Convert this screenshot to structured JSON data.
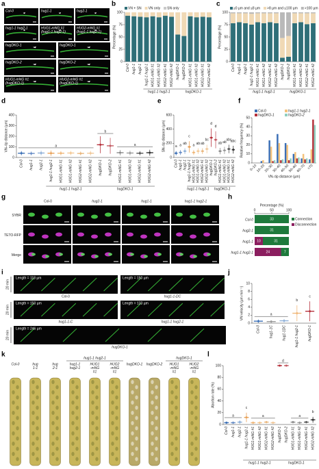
{
  "panel_labels": [
    "a",
    "b",
    "c",
    "d",
    "e",
    "f",
    "g",
    "h",
    "i",
    "j",
    "k",
    "l"
  ],
  "panel_a": {
    "tiles": [
      [
        "Col-0"
      ],
      [
        "hug1-1"
      ],
      [
        "hug2-1"
      ],
      [
        "hug1-1 hug2-1"
      ],
      [
        "HUG1-mNG #1",
        "(hug1-1 hug2-1)"
      ],
      [
        "HUG2-mNG #1",
        "(hug1-1 hug2-1)"
      ],
      [
        "hugDKO-1"
      ],
      [
        "hugDKO-1"
      ],
      [
        "hugDKO-2"
      ],
      [
        "hugDKO-2"
      ],
      [
        "HUG1-mNG #1",
        "(hugDKO-1)"
      ],
      [
        "HUG2-mNG #1",
        "(hugDKO-1)"
      ]
    ]
  },
  "panel_g": {
    "columns": [
      "Col-0",
      "hug2-1",
      "hug1-1",
      "hug1-1 hug2-1"
    ],
    "rows": [
      "SYBR",
      "TETO-RFP",
      "Merge"
    ]
  },
  "panel_i": {
    "time": "20 min",
    "tiles": [
      {
        "length": "Length = 118 µm",
        "caption": "Col-0"
      },
      {
        "length": "Length = 150 µm",
        "caption": "hug1-1-DC"
      },
      {
        "length": "Length = 150 µm",
        "caption": "hug1-1-C"
      },
      {
        "length": "Length = 133 µm",
        "caption": "hug1-1 hug2-1"
      },
      {
        "length": "Length = 246 µm",
        "caption": "hugDKO-1"
      }
    ]
  },
  "panel_k": {
    "groups": [
      "hug1-1 hug2-1",
      "hugDKO-1"
    ],
    "columns": [
      [
        "Col-0"
      ],
      [
        "hug",
        "1-1"
      ],
      [
        "hug",
        "2-1"
      ],
      [
        "hug1-1",
        "hug2-1"
      ],
      [
        "HUG1",
        "-mNG",
        "#1"
      ],
      [
        "HUG2",
        "-mNG",
        "#1"
      ],
      [
        "hugDKO-1"
      ],
      [
        "hugDKO-2"
      ],
      [
        "HUG1",
        "-mNG",
        "#1"
      ],
      [
        "HUG2",
        "-mNG",
        "#1"
      ]
    ]
  },
  "chart_data": [
    {
      "type": "stacked_bar",
      "ylabel": "Percentage (%)",
      "ylim": [
        0,
        100
      ],
      "yticks": [
        0,
        25,
        50,
        75,
        100
      ],
      "categories": [
        "Col-0",
        "hug1-1",
        "hug2-1",
        "hug1-1 hug2-1",
        "HUG1-mNG #1",
        "HUG1-mNG #2",
        "HUG2-mNG #1",
        "HUG2-mNG #2",
        "hugDKO-1",
        "hugDKO-2",
        "HUG1-mNG #1",
        "HUG1-mNG #2",
        "HUG2-mNG #1",
        "HUG2-mNG #2"
      ],
      "groups": [
        "hug1-1 hug2-1",
        "hugDKO-1"
      ],
      "series": [
        {
          "name": "VN + SN",
          "color": "#2f6f78",
          "values": [
            93,
            92,
            91,
            90,
            92,
            90,
            93,
            91,
            55,
            52,
            92,
            90,
            91,
            90
          ]
        },
        {
          "name": "VN only",
          "color": "#f0d9b5",
          "values": [
            7,
            8,
            9,
            10,
            8,
            10,
            7,
            9,
            45,
            48,
            8,
            10,
            9,
            10
          ]
        },
        {
          "name": "SN only",
          "color": "#c9c9c9",
          "values": [
            0,
            0,
            0,
            0,
            0,
            0,
            0,
            0,
            0,
            0,
            0,
            0,
            0,
            0
          ]
        }
      ]
    },
    {
      "type": "stacked_bar",
      "ylabel": "Percentage (%)",
      "ylim": [
        0,
        100
      ],
      "yticks": [
        0,
        25,
        50,
        75,
        100
      ],
      "categories": [
        "Col-0",
        "hug1-1",
        "hug2-1",
        "hug1-1 hug2-1",
        "HUG1-mNG #1",
        "HUG1-mNG #2",
        "HUG2-mNG #1",
        "HUG2-mNG #2",
        "hugDKO-1",
        "hugDKO-2",
        "HUG1-mNG #1",
        "HUG1-mNG #2",
        "HUG2-mNG #1",
        "HUG2-mNG #2"
      ],
      "groups": [
        "hug1-1 hug2-1",
        "hugDKO-1"
      ],
      "series": [
        {
          "name": "≥0 µm and ≤8 µm",
          "color": "#2f6f78",
          "values": [
            78,
            80,
            78,
            75,
            80,
            78,
            80,
            78,
            8,
            10,
            78,
            80,
            76,
            78
          ]
        },
        {
          "name": ">8 µm and ≤100 µm",
          "color": "#f0d9b5",
          "values": [
            20,
            18,
            20,
            22,
            18,
            20,
            18,
            20,
            40,
            42,
            20,
            18,
            22,
            20
          ]
        },
        {
          "name": ">100 µm",
          "color": "#b9b9b9",
          "values": [
            2,
            2,
            2,
            3,
            2,
            2,
            2,
            2,
            52,
            48,
            2,
            2,
            2,
            2
          ]
        }
      ]
    },
    {
      "type": "dot_summary",
      "ylabel": "VN–tip distance (µm)",
      "ylim": [
        0,
        400
      ],
      "yticks": [
        0,
        100,
        200,
        300,
        400
      ],
      "categories": [
        "Col-0",
        "hug1-1",
        "hug2-1",
        "hug1-1 hug2-1",
        "HUG1-mNG #1",
        "HUG1-mNG #2",
        "HUG2-mNG #1",
        "HUG2-mNG #2",
        "hugDKO-1",
        "hugDKO-2",
        "HUG1-mNG #1",
        "HUG1-mNG #2",
        "HUG2-mNG #1",
        "HUG2-mNG #2"
      ],
      "groups": [
        "hug1-1 hug2-1",
        "hugDKO-1"
      ],
      "colors": [
        "#3b6fb6",
        "#6a8fc7",
        "#8fb0d8",
        "#e8a25a",
        "#f0b87a",
        "#f3c894",
        "#e9b77e",
        "#f0c89a",
        "#b5303a",
        "#c25a62",
        "#888888",
        "#9a9a9a",
        "#555555",
        "#333333"
      ],
      "values": [
        40,
        38,
        42,
        40,
        40,
        42,
        38,
        40,
        120,
        110,
        45,
        42,
        40,
        45
      ],
      "errors": [
        20,
        18,
        22,
        25,
        20,
        20,
        18,
        22,
        80,
        75,
        25,
        22,
        20,
        28
      ],
      "annotations": [
        "a",
        "b",
        "a"
      ]
    },
    {
      "type": "dot_summary",
      "ylabel": "SN–tip distance (µm)",
      "ylim": [
        0,
        600
      ],
      "yticks": [
        0,
        200,
        400,
        600
      ],
      "categories": [
        "Col-0",
        "hug1-1",
        "hug2-1",
        "hug1-1 hug2-1",
        "HUG1-mNG #1",
        "HUG1-mNG #2",
        "HUG2-mNG #1",
        "HUG2-mNG #2",
        "hugDKO-1",
        "hugDKO-2",
        "HUG1-mNG #1",
        "HUG1-mNG #2",
        "HUG2-mNG #1",
        "HUG2-mNG #2"
      ],
      "groups": [
        "hug1-1 hug2-1",
        "hugDKO-1"
      ],
      "colors": [
        "#3b6fb6",
        "#6a8fc7",
        "#8fb0d8",
        "#e8a25a",
        "#f0b87a",
        "#f3c894",
        "#e9b77e",
        "#f0c89a",
        "#b5303a",
        "#c25a62",
        "#888888",
        "#9a9a9a",
        "#555555",
        "#333333"
      ],
      "values": [
        60,
        70,
        90,
        150,
        70,
        90,
        90,
        120,
        280,
        250,
        90,
        100,
        120,
        110
      ],
      "errors": [
        30,
        35,
        40,
        80,
        35,
        40,
        40,
        60,
        130,
        120,
        45,
        50,
        60,
        55
      ],
      "annotations": [
        "a",
        "a",
        "ab",
        "c",
        "a",
        "ab",
        "ab",
        "bc",
        "d",
        "d",
        "ab",
        "ab",
        "abc",
        "abc"
      ]
    },
    {
      "type": "grouped_bar",
      "ylabel": "Relative frequency (%)",
      "xlabel": "VN–tip distance (µm)",
      "ylim": [
        0,
        50
      ],
      "yticks": [
        0,
        10,
        20,
        30,
        40,
        50
      ],
      "categories": [
        "0–10",
        "10–20",
        "20–30",
        "30–40",
        "40–50",
        "50–60",
        "60–70",
        ">70"
      ],
      "series": [
        {
          "name": "Col-0",
          "color": "#3b6fb6",
          "values": [
            0,
            2,
            25,
            32,
            22,
            10,
            5,
            4
          ]
        },
        {
          "name": "hug1-1 hug2-1",
          "color": "#f5c27a",
          "values": [
            0,
            3,
            18,
            22,
            20,
            12,
            10,
            15
          ]
        },
        {
          "name": "hugDKO-1",
          "color": "#b5303a",
          "values": [
            0,
            0,
            2,
            3,
            3,
            5,
            4,
            48
          ]
        },
        {
          "name": "hugDKO-2",
          "color": "#8fcfc0",
          "values": [
            0,
            0,
            3,
            4,
            5,
            6,
            5,
            42
          ]
        }
      ]
    },
    {
      "type": "hstack",
      "xlabel": "Percentage (%)",
      "xlim": [
        0,
        100
      ],
      "xticks": [
        0,
        50,
        100
      ],
      "categories": [
        "Col-0",
        "hug2-1",
        "hug1-1",
        "hug1-1 hug2-1"
      ],
      "series": [
        {
          "name": "Connection",
          "color": "#1e7a3c",
          "values": [
            100,
            100,
            76,
            23
          ],
          "counts": [
            33,
            31,
            31,
            7
          ]
        },
        {
          "name": "Disconnection",
          "color": "#8b1e5f",
          "values": [
            0,
            0,
            24,
            77
          ],
          "counts": [
            null,
            null,
            10,
            24
          ]
        }
      ]
    },
    {
      "type": "dot_summary",
      "ylabel": "VN velocity (µm min⁻¹)",
      "ylim": [
        0,
        10
      ],
      "yticks": [
        0,
        2,
        4,
        6,
        8,
        10
      ],
      "categories": [
        "Col-0",
        "hug1-1C",
        "hug1-1DC",
        "hug1-1 hug2-1",
        "hugDKO-1"
      ],
      "colors": [
        "#3b6fb6",
        "#9a9a9a",
        "#8fb0d8",
        "#f0b87a",
        "#b5303a"
      ],
      "values": [
        0.5,
        0.4,
        0.6,
        2.5,
        3
      ],
      "errors": [
        0.4,
        0.3,
        0.4,
        2,
        2.5
      ],
      "annotations": [
        "a",
        "b",
        "c"
      ]
    },
    {
      "type": "dot_summary",
      "ylabel": "Abortion rate (%)",
      "ylim": [
        0,
        100
      ],
      "yticks": [
        0,
        20,
        40,
        60,
        80,
        100
      ],
      "categories": [
        "Col-0",
        "hug1-1",
        "hug2-1",
        "hug1-1 hug2-1",
        "HUG1-mNG #1",
        "HUG1-mNG #2",
        "HUG2-mNG #1",
        "HUG2-mNG #2",
        "hugDKO-1",
        "hugDKO-2",
        "HUG1-mNG #1",
        "HUG1-mNG #2",
        "HUG2-mNG #1",
        "HUG2-mNG #2"
      ],
      "groups": [
        "hug1-1 hug2-1",
        "hugDKO-1"
      ],
      "colors": [
        "#3b6fb6",
        "#6a8fc7",
        "#8fb0d8",
        "#e8a25a",
        "#f0b87a",
        "#f3c894",
        "#e9b77e",
        "#f0c89a",
        "#b5303a",
        "#c25a62",
        "#888888",
        "#9a9a9a",
        "#555555",
        "#333333"
      ],
      "values": [
        3,
        3,
        4,
        12,
        3,
        3,
        4,
        3,
        100,
        100,
        4,
        3,
        4,
        8
      ],
      "errors": [
        2,
        2,
        3,
        8,
        2,
        2,
        2,
        2,
        0,
        0,
        2,
        2,
        2,
        5
      ],
      "annotations": [
        "a",
        "c",
        "a",
        "d",
        "a",
        "b"
      ]
    }
  ]
}
